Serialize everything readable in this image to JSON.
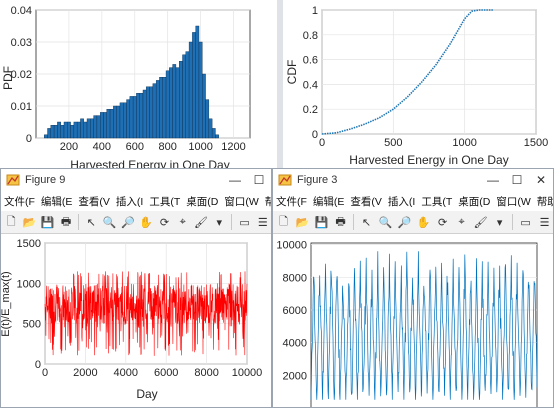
{
  "top_left": {
    "ylabel": "PDF",
    "xlabel": "Harvested Energy in One Day",
    "xticks": [
      "200",
      "400",
      "600",
      "800",
      "1000",
      "1200"
    ],
    "yticks": [
      "0",
      "0.01",
      "0.02",
      "0.03",
      "0.04"
    ]
  },
  "top_right": {
    "ylabel": "CDF",
    "xlabel": "Harvested Energy in One Day",
    "xticks": [
      "0",
      "500",
      "1000",
      "1500"
    ],
    "yticks": [
      "0",
      "0.2",
      "0.4",
      "0.6",
      "0.8",
      "1"
    ]
  },
  "fig9": {
    "title": "Figure 9",
    "menus": [
      "文件(F",
      "编辑(E",
      "查看(V",
      "插入(I",
      "工具(T",
      "桌面(D",
      "窗口(W",
      "帮助(H"
    ],
    "ylabel": "E(t)/E_max(t)",
    "xlabel": "Day",
    "xticks": [
      "0",
      "2000",
      "4000",
      "6000",
      "8000",
      "10000"
    ],
    "yticks": [
      "0",
      "500",
      "1000",
      "1500"
    ]
  },
  "fig3": {
    "title": "Figure 3",
    "menus": [
      "文件(F",
      "编辑(E",
      "查看(V",
      "插入(I",
      "工具(T",
      "桌面(D",
      "窗口(W",
      "帮助(H"
    ],
    "yticks": [
      "2000",
      "4000",
      "6000",
      "8000",
      "10000"
    ]
  },
  "window_buttons": {
    "minimize": "—",
    "maximize": "☐",
    "close": "✕"
  },
  "colors": {
    "bar": "#1f6fb5",
    "cdf": "#1f77b4",
    "fig9": "#ff0000",
    "fig3": "#0072bd"
  },
  "chart_data": [
    {
      "type": "bar",
      "ylabel": "PDF",
      "xlabel": "Harvested Energy in One Day",
      "xlim": [
        0,
        1300
      ],
      "ylim": [
        0,
        0.04
      ],
      "x": [
        60,
        80,
        100,
        120,
        140,
        160,
        180,
        200,
        220,
        240,
        260,
        280,
        300,
        320,
        340,
        360,
        380,
        400,
        420,
        440,
        460,
        480,
        500,
        520,
        540,
        560,
        580,
        600,
        620,
        640,
        660,
        680,
        700,
        720,
        740,
        760,
        780,
        800,
        820,
        840,
        860,
        880,
        900,
        920,
        940,
        960,
        980,
        1000,
        1020,
        1040,
        1060,
        1080,
        1100
      ],
      "values": [
        0.001,
        0.003,
        0.004,
        0.004,
        0.005,
        0.004,
        0.005,
        0.005,
        0.004,
        0.005,
        0.005,
        0.006,
        0.005,
        0.006,
        0.006,
        0.007,
        0.007,
        0.008,
        0.008,
        0.009,
        0.009,
        0.01,
        0.01,
        0.011,
        0.011,
        0.012,
        0.013,
        0.013,
        0.014,
        0.014,
        0.015,
        0.016,
        0.016,
        0.017,
        0.018,
        0.019,
        0.019,
        0.021,
        0.022,
        0.023,
        0.022,
        0.024,
        0.026,
        0.027,
        0.03,
        0.033,
        0.035,
        0.03,
        0.02,
        0.012,
        0.006,
        0.003,
        0.001
      ]
    },
    {
      "type": "line",
      "ylabel": "CDF",
      "xlabel": "Harvested Energy in One Day",
      "xlim": [
        0,
        1500
      ],
      "ylim": [
        0,
        1
      ],
      "x": [
        0,
        100,
        200,
        300,
        400,
        500,
        600,
        700,
        800,
        900,
        1000,
        1050,
        1100,
        1200
      ],
      "y": [
        0,
        0.01,
        0.04,
        0.08,
        0.13,
        0.2,
        0.3,
        0.42,
        0.56,
        0.73,
        0.93,
        0.99,
        1,
        1
      ]
    },
    {
      "type": "line",
      "ylabel": "E(t)/E_max(t)",
      "xlabel": "Day",
      "xlim": [
        0,
        10000
      ],
      "ylim": [
        0,
        1500
      ],
      "y_range": [
        100,
        1150
      ],
      "y_typical": [
        500,
        1000
      ]
    },
    {
      "type": "line",
      "xlim": [
        0,
        10000
      ],
      "ylim": [
        0,
        10000
      ],
      "y_range": [
        500,
        9600
      ],
      "peaks": 39
    }
  ]
}
